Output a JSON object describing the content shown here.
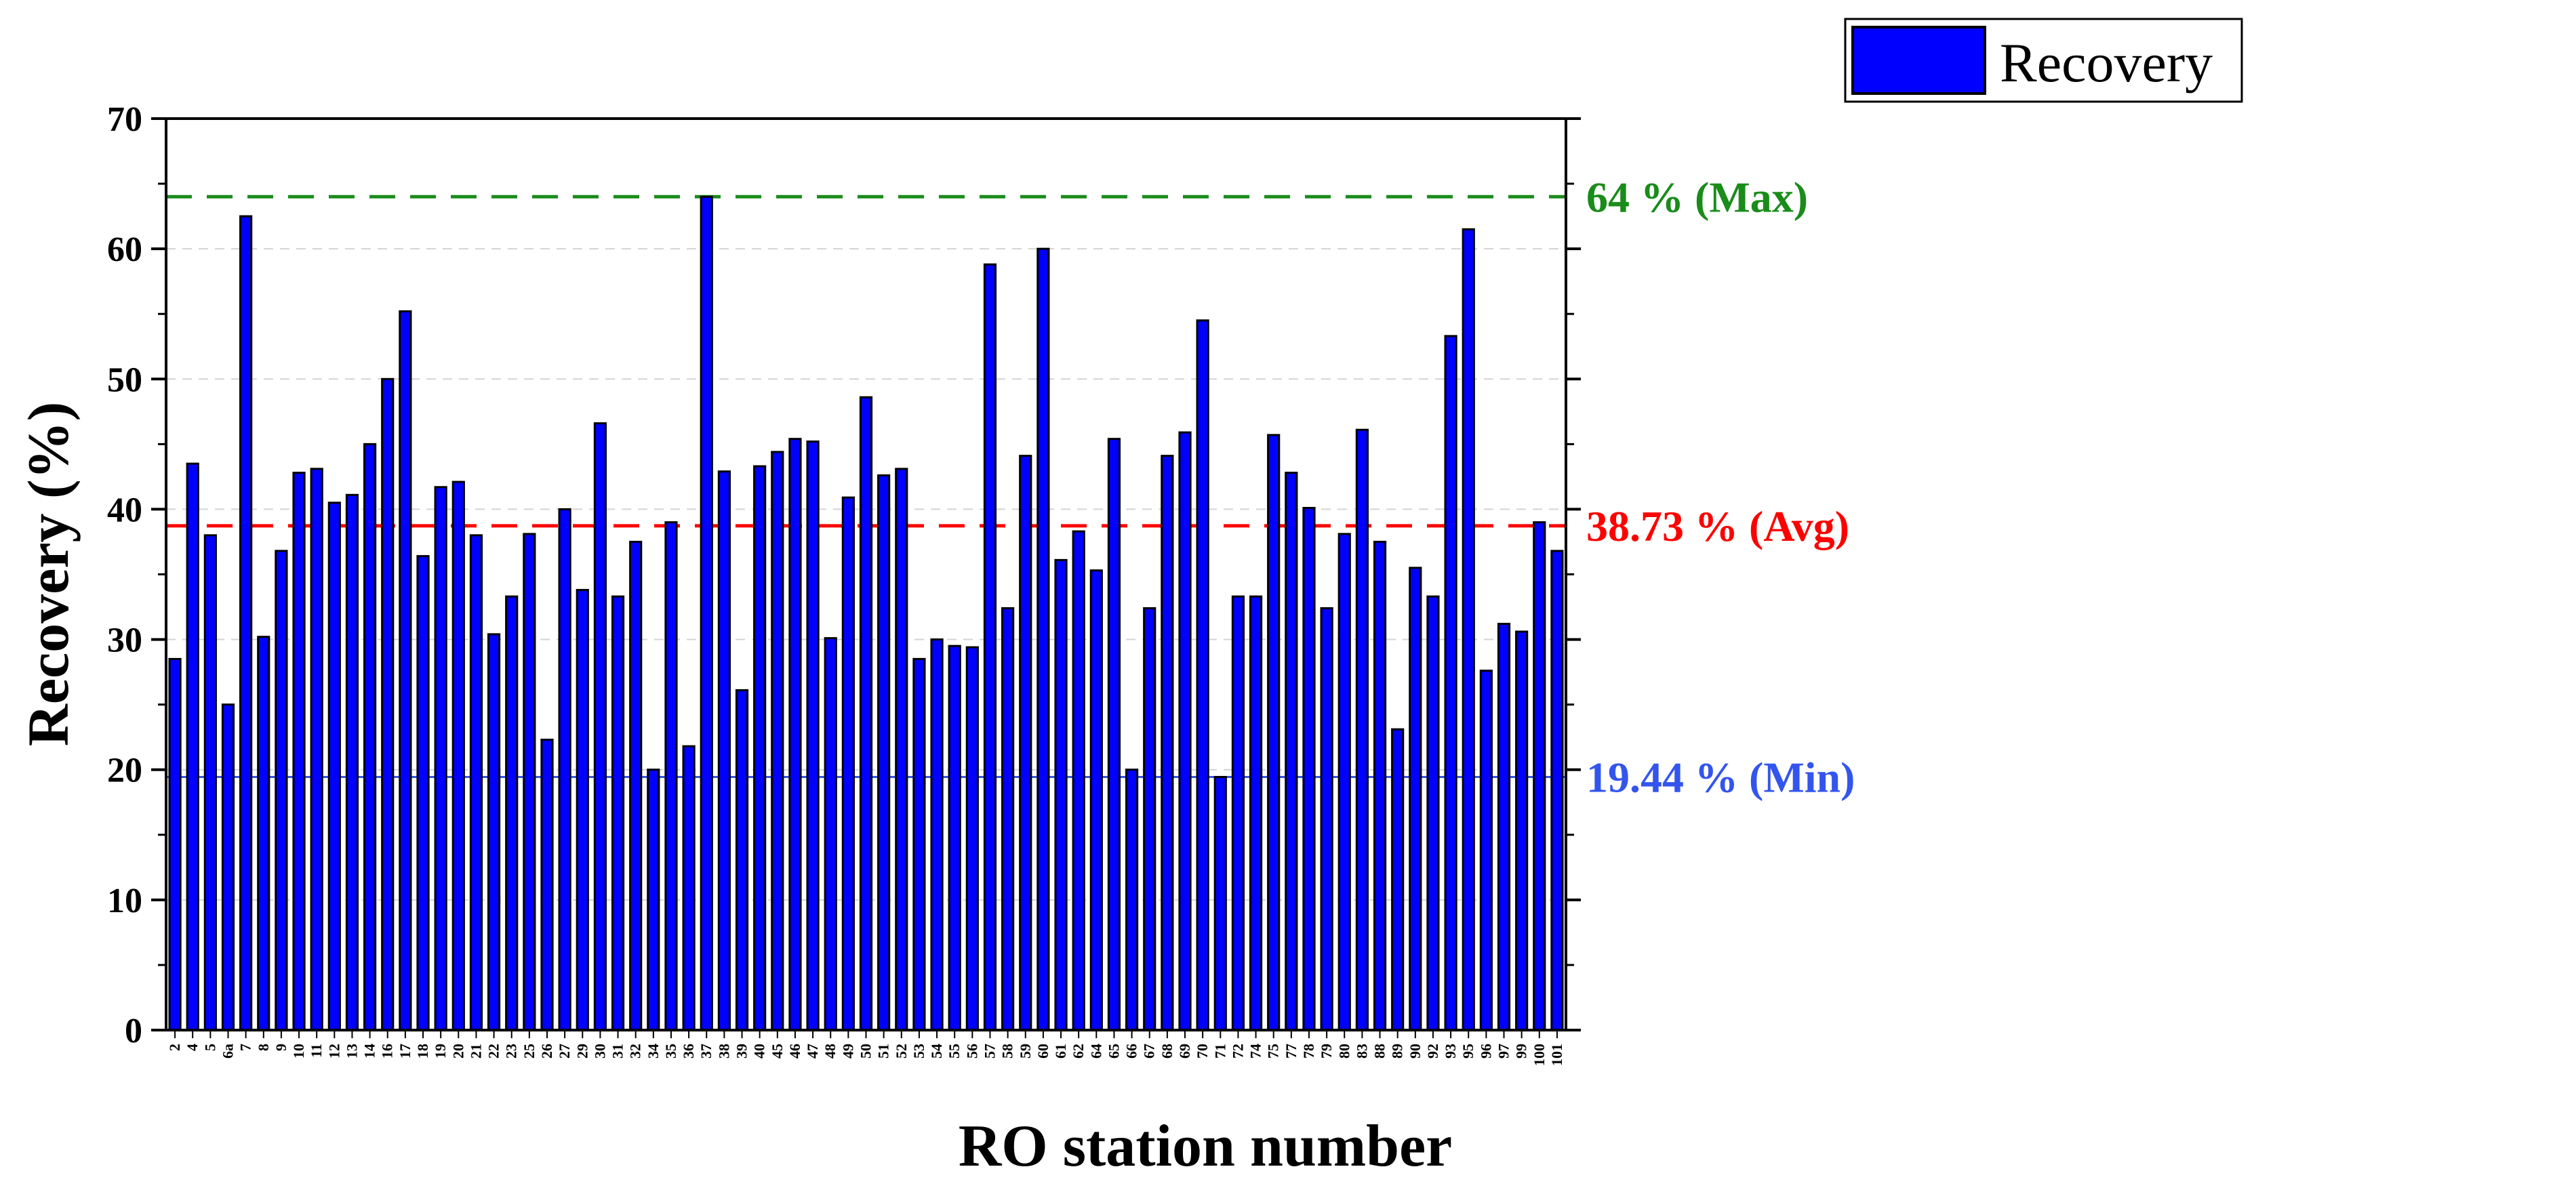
{
  "chart_data": {
    "type": "bar",
    "xlabel": "RO station number",
    "ylabel": "Recovery (%)",
    "ylim": [
      0,
      70
    ],
    "yticks": [
      "0",
      "10",
      "20",
      "30",
      "40",
      "50",
      "60",
      "70"
    ],
    "legend": {
      "label": "Recovery",
      "placement": "top-right"
    },
    "series": [
      {
        "name": "Recovery",
        "color": "#0000ff"
      }
    ],
    "categories": [
      "2",
      "4",
      "5",
      "6a",
      "7",
      "8",
      "9",
      "10",
      "11",
      "12",
      "13",
      "14",
      "16",
      "17",
      "18",
      "19",
      "20",
      "21",
      "22",
      "23",
      "25",
      "26",
      "27",
      "29",
      "30",
      "31",
      "32",
      "34",
      "35",
      "36",
      "37",
      "38",
      "39",
      "40",
      "45",
      "46",
      "47",
      "48",
      "49",
      "50",
      "51",
      "52",
      "53",
      "54",
      "55",
      "56",
      "57",
      "58",
      "59",
      "60",
      "61",
      "62",
      "64",
      "65",
      "66",
      "67",
      "68",
      "69",
      "70",
      "71",
      "72",
      "74",
      "75",
      "77",
      "78",
      "79",
      "80",
      "83",
      "88",
      "89",
      "90",
      "92",
      "93",
      "95",
      "96",
      "97",
      "99",
      "100",
      "101"
    ],
    "values": [
      28.5,
      43.5,
      38,
      25,
      62.5,
      30.2,
      36.8,
      42.8,
      43.1,
      40.5,
      41.1,
      45,
      50,
      55.2,
      36.4,
      41.7,
      42.1,
      38,
      30.4,
      33.3,
      38.1,
      22.3,
      40,
      33.8,
      46.6,
      33.3,
      37.5,
      20,
      39,
      21.8,
      64,
      42.9,
      26.1,
      43.3,
      44.4,
      45.4,
      45.2,
      30.1,
      40.9,
      48.6,
      42.6,
      43.1,
      28.5,
      30,
      29.5,
      29.4,
      58.8,
      32.4,
      44.1,
      60,
      36.1,
      38.3,
      35.3,
      45.4,
      20,
      32.4,
      44.1,
      45.9,
      54.5,
      19.44,
      33.3,
      33.3,
      45.7,
      42.8,
      40.1,
      32.4,
      38.1,
      46.1,
      37.5,
      23.1,
      35.5,
      33.3,
      53.3,
      61.5,
      27.6,
      31.2,
      30.6,
      39,
      36.8
    ],
    "reference_lines": [
      {
        "value": 64,
        "label": "64 % (Max)",
        "color": "#1a8c1a",
        "style": "dashed"
      },
      {
        "value": 38.73,
        "label": "38.73 % (Avg)",
        "color": "#ff0000",
        "style": "dashed"
      },
      {
        "value": 19.44,
        "label": "19.44 % (Min)",
        "color": "#3355ee",
        "style": "solid"
      }
    ],
    "grid": {
      "horizontal": true,
      "vertical": false
    }
  }
}
